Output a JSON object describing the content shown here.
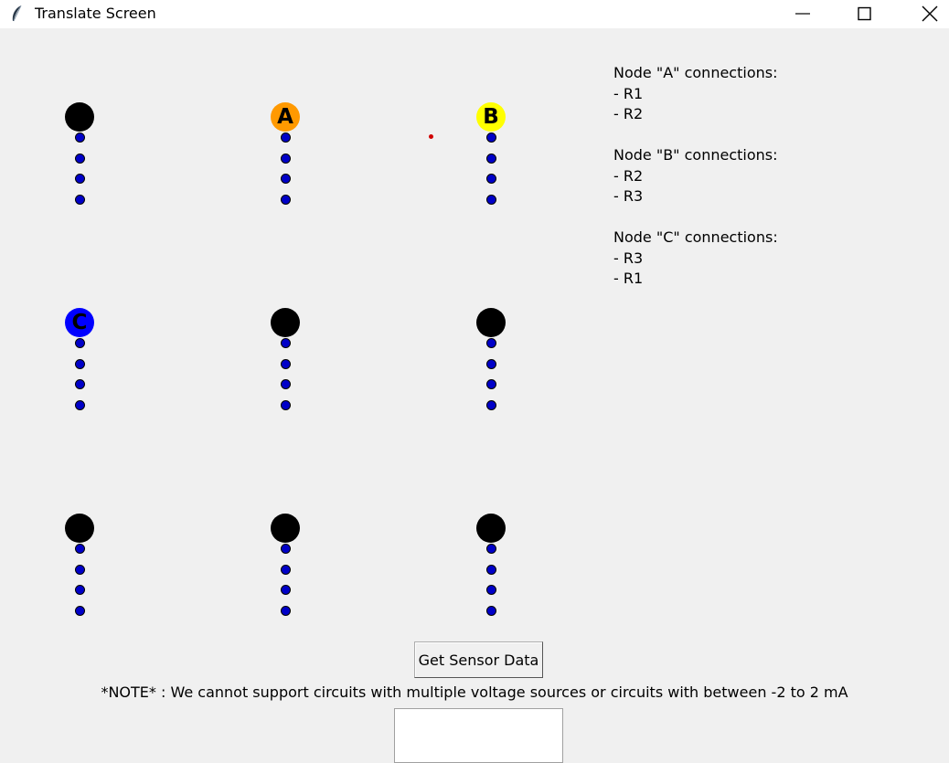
{
  "window": {
    "title": "Translate Screen"
  },
  "nodes": [
    {
      "label": "",
      "color": "#000000"
    },
    {
      "label": "A",
      "color": "#ff9900"
    },
    {
      "label": "B",
      "color": "#ffff00"
    },
    {
      "label": "C",
      "color": "#0000ff"
    },
    {
      "label": "",
      "color": "#000000"
    },
    {
      "label": "",
      "color": "#000000"
    },
    {
      "label": "",
      "color": "#000000"
    },
    {
      "label": "",
      "color": "#000000"
    },
    {
      "label": "",
      "color": "#000000"
    }
  ],
  "terminal_color": "#0000c8",
  "cursor_color": "#d00000",
  "connections": [
    {
      "title": "Node \"A\" connections:",
      "items": [
        "- R1",
        "- R2"
      ]
    },
    {
      "title": "Node \"B\" connections:",
      "items": [
        "- R2",
        "- R3"
      ]
    },
    {
      "title": "Node \"C\" connections:",
      "items": [
        "- R3",
        "- R1"
      ]
    }
  ],
  "sensor_button_label": "Get Sensor Data",
  "note": "*NOTE* : We cannot support circuits with multiple voltage sources or circuits with between -2 to 2 mA"
}
